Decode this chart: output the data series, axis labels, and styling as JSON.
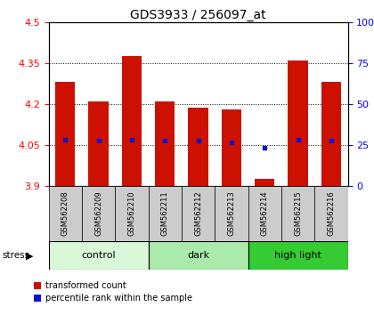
{
  "title": "GDS3933 / 256097_at",
  "samples": [
    "GSM562208",
    "GSM562209",
    "GSM562210",
    "GSM562211",
    "GSM562212",
    "GSM562213",
    "GSM562214",
    "GSM562215",
    "GSM562216"
  ],
  "bar_tops": [
    4.28,
    4.21,
    4.375,
    4.21,
    4.185,
    4.18,
    3.925,
    4.36,
    4.28
  ],
  "bar_bottom": 3.9,
  "blue_y": [
    4.07,
    4.065,
    4.07,
    4.065,
    4.065,
    4.06,
    4.04,
    4.07,
    4.065
  ],
  "ylim_left": [
    3.9,
    4.5
  ],
  "ylim_right": [
    0,
    100
  ],
  "yticks_left": [
    3.9,
    4.05,
    4.2,
    4.35,
    4.5
  ],
  "ytick_labels_left": [
    "3.9",
    "4.05",
    "4.2",
    "4.35",
    "4.5"
  ],
  "yticks_right": [
    0,
    25,
    50,
    75,
    100
  ],
  "ytick_labels_right": [
    "0",
    "25",
    "50",
    "75",
    "100%"
  ],
  "bar_color": "#cc1100",
  "blue_color": "#1111cc",
  "bar_width": 0.6,
  "group_configs": [
    {
      "label": "control",
      "start": 0,
      "end": 2,
      "color": "#d8f8d8"
    },
    {
      "label": "dark",
      "start": 3,
      "end": 5,
      "color": "#aaeaaa"
    },
    {
      "label": "high light",
      "start": 6,
      "end": 8,
      "color": "#33cc33"
    }
  ],
  "stress_label": "stress",
  "label_bg": "#cccccc",
  "legend_items": [
    "transformed count",
    "percentile rank within the sample"
  ]
}
